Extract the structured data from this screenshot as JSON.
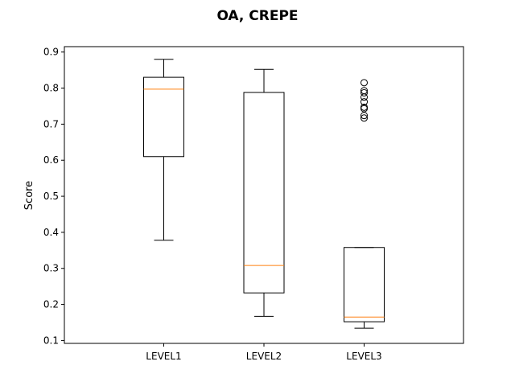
{
  "chart_data": {
    "type": "box",
    "title": "OA, CREPE",
    "xlabel": "",
    "ylabel": "Score",
    "ylim": [
      0.092,
      0.915
    ],
    "yticks": [
      "0.1",
      "0.2",
      "0.3",
      "0.4",
      "0.5",
      "0.6",
      "0.7",
      "0.8",
      "0.9"
    ],
    "grid": false,
    "colors": {
      "box": "#000000",
      "median": "#ff7f0e"
    },
    "categories": [
      "LEVEL1",
      "LEVEL2",
      "LEVEL3"
    ],
    "boxes": [
      {
        "category": "LEVEL1",
        "whisker_low": 0.378,
        "q1": 0.61,
        "median": 0.797,
        "q3": 0.83,
        "whisker_high": 0.88,
        "outliers": []
      },
      {
        "category": "LEVEL2",
        "whisker_low": 0.167,
        "q1": 0.232,
        "median": 0.308,
        "q3": 0.788,
        "whisker_high": 0.852,
        "outliers": []
      },
      {
        "category": "LEVEL3",
        "whisker_low": 0.134,
        "q1": 0.152,
        "median": 0.165,
        "q3": 0.358,
        "whisker_high": 0.358,
        "outliers": [
          0.717,
          0.724,
          0.743,
          0.747,
          0.762,
          0.775,
          0.787,
          0.793,
          0.815
        ]
      }
    ]
  }
}
